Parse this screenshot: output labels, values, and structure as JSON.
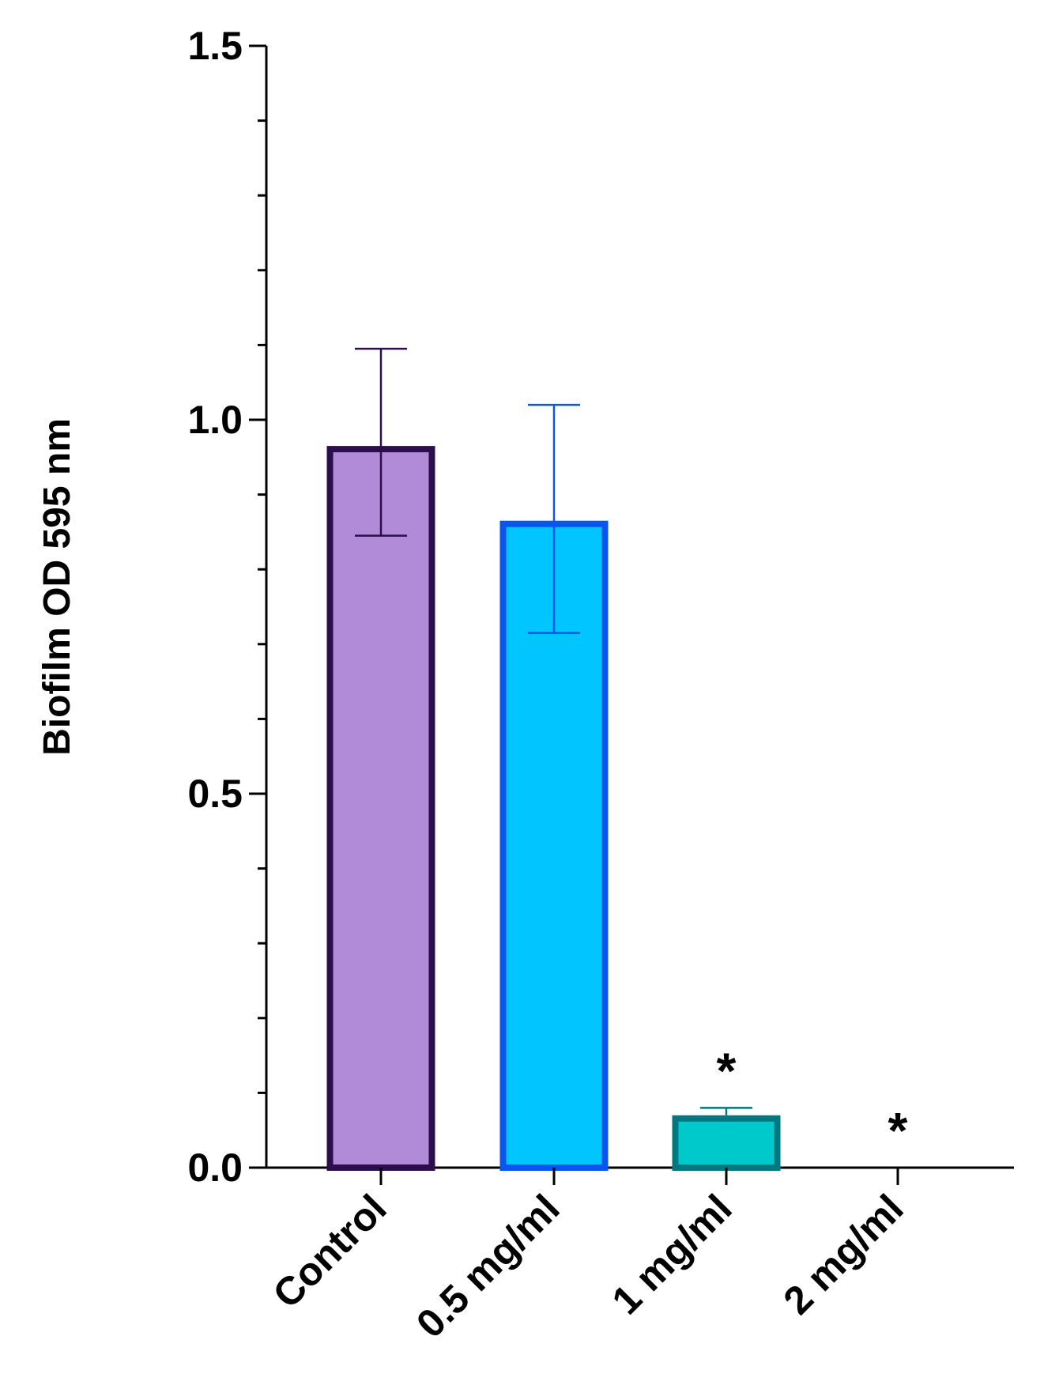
{
  "chart_data": {
    "type": "bar",
    "title": "",
    "xlabel": "",
    "ylabel": "Biofilm OD 595 nm",
    "ylim": [
      0,
      1.5
    ],
    "yticks": [
      "0.0",
      "0.5",
      "1.0",
      "1.5"
    ],
    "y_major_step": 0.5,
    "y_minor_step": 0.1,
    "grid": false,
    "legend": "none",
    "categories": [
      "Control",
      "0.5 mg/ml",
      "1 mg/ml",
      "2 mg/ml"
    ],
    "values": [
      0.965,
      0.865,
      0.07,
      0.0
    ],
    "error_upper": [
      1.095,
      1.02,
      0.08,
      0.0
    ],
    "error_lower": [
      0.845,
      0.715,
      0.07,
      0.0
    ],
    "annotations": [
      "",
      "",
      "*",
      "*"
    ],
    "fill_colors": [
      "#B18BD8",
      "#00C5FF",
      "#00C9CC",
      "#FFFFFF"
    ],
    "edge_colors": [
      "#2B0E4B",
      "#0A55F0",
      "#00787F",
      "#000000"
    ],
    "error_colors": [
      "#2B0E4B",
      "#0A55F0",
      "#00787F",
      "#000000"
    ]
  }
}
